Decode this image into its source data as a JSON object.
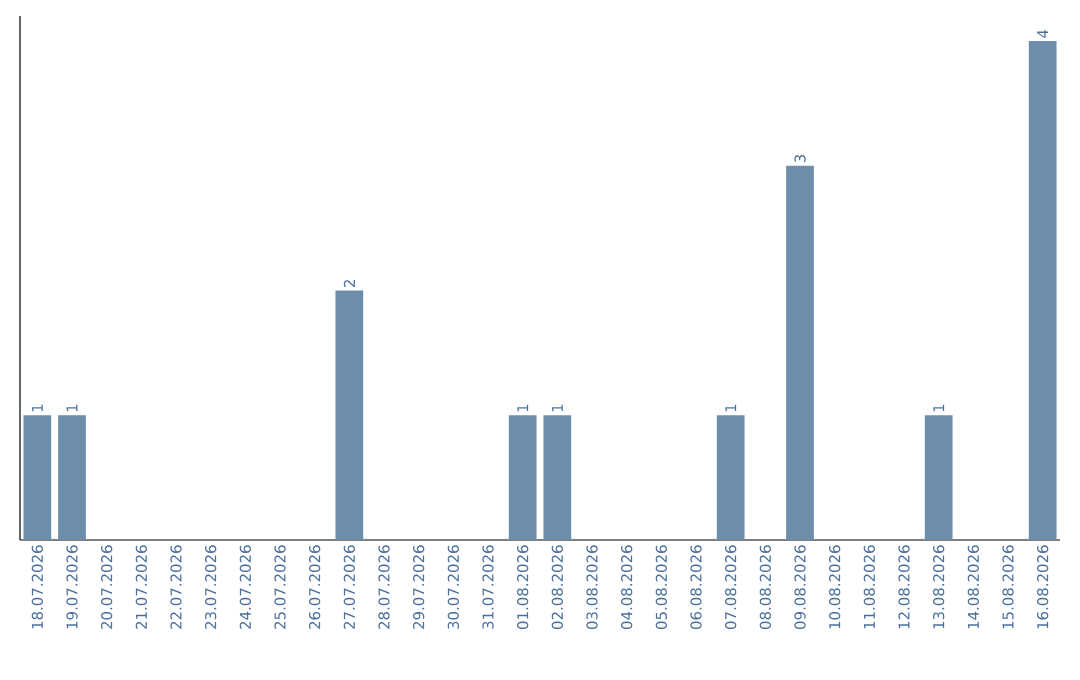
{
  "chart_data": {
    "type": "bar",
    "categories": [
      "18.07.2026",
      "19.07.2026",
      "20.07.2026",
      "21.07.2026",
      "22.07.2026",
      "23.07.2026",
      "24.07.2026",
      "25.07.2026",
      "26.07.2026",
      "27.07.2026",
      "28.07.2026",
      "29.07.2026",
      "30.07.2026",
      "31.07.2026",
      "01.08.2026",
      "02.08.2026",
      "03.08.2026",
      "04.08.2026",
      "05.08.2026",
      "06.08.2026",
      "07.08.2026",
      "08.08.2026",
      "09.08.2026",
      "10.08.2026",
      "11.08.2026",
      "12.08.2026",
      "13.08.2026",
      "14.08.2026",
      "15.08.2026",
      "16.08.2026"
    ],
    "values": [
      1,
      1,
      0,
      0,
      0,
      0,
      0,
      0,
      0,
      2,
      0,
      0,
      0,
      0,
      1,
      1,
      0,
      0,
      0,
      0,
      1,
      0,
      3,
      0,
      0,
      0,
      1,
      0,
      0,
      4
    ],
    "value_labels": [
      "1",
      "1",
      null,
      null,
      null,
      null,
      null,
      null,
      null,
      "2",
      null,
      null,
      null,
      null,
      "1",
      "1",
      null,
      null,
      null,
      null,
      "1",
      null,
      "3",
      null,
      null,
      null,
      "1",
      null,
      null,
      "4"
    ],
    "color": "#6d8dab"
  }
}
